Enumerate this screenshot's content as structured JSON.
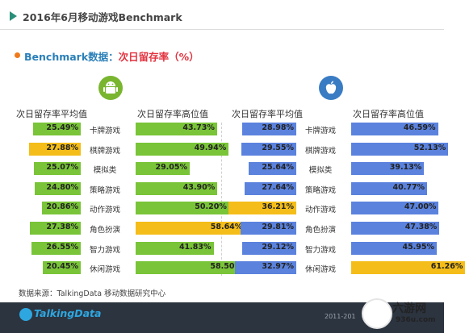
{
  "header": {
    "title": "2016年6月移动游戏Benchmark"
  },
  "subtitle": {
    "part1": "Benchmark数据：",
    "part2": "次日留存率（%）"
  },
  "colors": {
    "android_avg": "#79c438",
    "ios_avg": "#5b82dd",
    "highlight": "#f4bd19",
    "brand": "#2ea7e0"
  },
  "chart_data": [
    {
      "type": "bar",
      "platform_icon": "android-icon",
      "categories": [
        "卡牌游戏",
        "棋牌游戏",
        "模拟类",
        "策略游戏",
        "动作游戏",
        "角色扮演",
        "智力游戏",
        "休闲游戏"
      ],
      "series": [
        {
          "name": "次日留存率平均值",
          "values": [
            25.49,
            27.88,
            25.07,
            24.8,
            20.86,
            27.38,
            26.55,
            20.45
          ],
          "labels": [
            "25.49%",
            "27.88%",
            "25.07%",
            "24.80%",
            "20.86%",
            "27.38%",
            "26.55%",
            "20.45%"
          ]
        },
        {
          "name": "次日留存率高位值",
          "values": [
            43.73,
            49.94,
            29.05,
            43.9,
            50.2,
            58.64,
            41.83,
            58.5
          ],
          "labels": [
            "43.73%",
            "49.94%",
            "29.05%",
            "43.90%",
            "50.20%",
            "58.64%",
            "41.83%",
            "58.50%"
          ]
        }
      ],
      "highlight": {
        "avg_index": 1,
        "high_index": 5
      }
    },
    {
      "type": "bar",
      "platform_icon": "apple-icon",
      "categories": [
        "卡牌游戏",
        "棋牌游戏",
        "模拟类",
        "策略游戏",
        "动作游戏",
        "角色扮演",
        "智力游戏",
        "休闲游戏"
      ],
      "series": [
        {
          "name": "次日留存率平均值",
          "values": [
            28.98,
            29.55,
            25.64,
            27.64,
            36.21,
            29.81,
            29.12,
            32.97
          ],
          "labels": [
            "28.98%",
            "29.55%",
            "25.64%",
            "27.64%",
            "36.21%",
            "29.81%",
            "29.12%",
            "32.97%"
          ]
        },
        {
          "name": "次日留存率高位值",
          "values": [
            46.59,
            52.13,
            39.13,
            40.77,
            47.0,
            47.38,
            45.95,
            61.26
          ],
          "labels": [
            "46.59%",
            "52.13%",
            "39.13%",
            "40.77%",
            "47.00%",
            "47.38%",
            "45.95%",
            "61.26%"
          ]
        }
      ],
      "highlight": {
        "avg_index": 4,
        "high_index": 7
      }
    }
  ],
  "footer": {
    "source": "数据来源：TalkingData 移动数据研究中心",
    "logo": "TalkingData",
    "years": "2011-201",
    "watermark1": "六游网",
    "watermark2": "936u.com"
  }
}
